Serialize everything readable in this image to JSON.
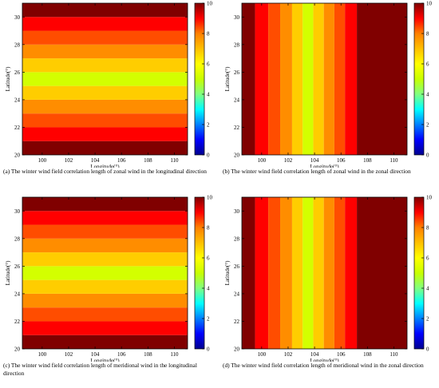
{
  "colormap": [
    "#00008f",
    "#0000ff",
    "#0080ff",
    "#00ffff",
    "#80ff80",
    "#c8ff00",
    "#ffff00",
    "#ffc000",
    "#ff8000",
    "#ff0000",
    "#800000"
  ],
  "chart_data": [
    {
      "type": "heatmap",
      "orientation": "horizontal",
      "xlabel": "Longitude(°)",
      "ylabel": "Latitude(°)",
      "xlim": [
        98.5,
        111
      ],
      "ylim": [
        20,
        31
      ],
      "xticks": [
        100,
        102,
        104,
        106,
        108,
        110
      ],
      "yticks": [
        20,
        22,
        24,
        26,
        28,
        30
      ],
      "colorbar": {
        "range": [
          0,
          10
        ],
        "ticks": [
          0,
          2,
          4,
          6,
          8,
          10
        ]
      },
      "bands": [
        {
          "from": 20,
          "to": 21,
          "value": 10
        },
        {
          "from": 21,
          "to": 22,
          "value": 9
        },
        {
          "from": 22,
          "to": 23,
          "value": 8.4
        },
        {
          "from": 23,
          "to": 24,
          "value": 7.8
        },
        {
          "from": 24,
          "to": 25,
          "value": 6.8
        },
        {
          "from": 25,
          "to": 26,
          "value": 5.2
        },
        {
          "from": 26,
          "to": 27,
          "value": 6.8
        },
        {
          "from": 27,
          "to": 28,
          "value": 7.8
        },
        {
          "from": 28,
          "to": 29,
          "value": 8.4
        },
        {
          "from": 29,
          "to": 30,
          "value": 9
        },
        {
          "from": 30,
          "to": 31,
          "value": 10
        }
      ],
      "caption": "(a) The winter wind field correlation length of zonal wind in the longitudinal direction"
    },
    {
      "type": "heatmap",
      "orientation": "vertical",
      "xlabel": "Longitude(°)",
      "ylabel": "Latitude(°)",
      "xlim": [
        98.5,
        111
      ],
      "ylim": [
        20,
        31
      ],
      "xticks": [
        100,
        102,
        104,
        106,
        108,
        110
      ],
      "yticks": [
        20,
        22,
        24,
        26,
        28,
        30
      ],
      "colorbar": {
        "range": [
          0,
          10
        ],
        "ticks": [
          0,
          2,
          4,
          6,
          8,
          10
        ]
      },
      "bands": [
        {
          "from": 98.5,
          "to": 99.5,
          "value": 10
        },
        {
          "from": 99.5,
          "to": 100.5,
          "value": 9
        },
        {
          "from": 100.5,
          "to": 101.4,
          "value": 8.4
        },
        {
          "from": 101.4,
          "to": 102.3,
          "value": 7.8
        },
        {
          "from": 102.3,
          "to": 103.1,
          "value": 6.8
        },
        {
          "from": 103.1,
          "to": 103.9,
          "value": 5.2
        },
        {
          "from": 103.9,
          "to": 104.7,
          "value": 6.8
        },
        {
          "from": 104.7,
          "to": 105.5,
          "value": 7.8
        },
        {
          "from": 105.5,
          "to": 106.3,
          "value": 8.4
        },
        {
          "from": 106.3,
          "to": 107.2,
          "value": 9
        },
        {
          "from": 107.2,
          "to": 111,
          "value": 10
        }
      ],
      "caption": "(b) The winter wind field correlation length of zonal wind  in the zonal direction"
    },
    {
      "type": "heatmap",
      "orientation": "horizontal",
      "xlabel": "Longitude(°)",
      "ylabel": "Latitude(°)",
      "xlim": [
        98.5,
        111
      ],
      "ylim": [
        20,
        31
      ],
      "xticks": [
        100,
        102,
        104,
        106,
        108,
        110
      ],
      "yticks": [
        20,
        22,
        24,
        26,
        28,
        30
      ],
      "colorbar": {
        "range": [
          0,
          10
        ],
        "ticks": [
          0,
          2,
          4,
          6,
          8,
          10
        ]
      },
      "bands": [
        {
          "from": 20,
          "to": 21,
          "value": 10
        },
        {
          "from": 21,
          "to": 22,
          "value": 9
        },
        {
          "from": 22,
          "to": 23,
          "value": 8.4
        },
        {
          "from": 23,
          "to": 24,
          "value": 7.8
        },
        {
          "from": 24,
          "to": 25,
          "value": 6.8
        },
        {
          "from": 25,
          "to": 26,
          "value": 5.2
        },
        {
          "from": 26,
          "to": 27,
          "value": 6.8
        },
        {
          "from": 27,
          "to": 28,
          "value": 7.8
        },
        {
          "from": 28,
          "to": 29,
          "value": 8.4
        },
        {
          "from": 29,
          "to": 30,
          "value": 9
        },
        {
          "from": 30,
          "to": 31,
          "value": 10
        }
      ],
      "caption": "(c) The winter wind field correlation length of meridional wind in the longitudinal direction"
    },
    {
      "type": "heatmap",
      "orientation": "vertical",
      "xlabel": "Longitude(°)",
      "ylabel": "Latitude(°)",
      "xlim": [
        98.5,
        111
      ],
      "ylim": [
        20,
        31
      ],
      "xticks": [
        100,
        102,
        104,
        106,
        108,
        110
      ],
      "yticks": [
        20,
        22,
        24,
        26,
        28,
        30
      ],
      "colorbar": {
        "range": [
          0,
          10
        ],
        "ticks": [
          0,
          2,
          4,
          6,
          8,
          10
        ]
      },
      "bands": [
        {
          "from": 98.5,
          "to": 99.5,
          "value": 10
        },
        {
          "from": 99.5,
          "to": 100.5,
          "value": 9
        },
        {
          "from": 100.5,
          "to": 101.4,
          "value": 8.4
        },
        {
          "from": 101.4,
          "to": 102.3,
          "value": 7.8
        },
        {
          "from": 102.3,
          "to": 103.1,
          "value": 6.8
        },
        {
          "from": 103.1,
          "to": 103.9,
          "value": 5.2
        },
        {
          "from": 103.9,
          "to": 104.7,
          "value": 6.8
        },
        {
          "from": 104.7,
          "to": 105.5,
          "value": 7.8
        },
        {
          "from": 105.5,
          "to": 106.3,
          "value": 8.4
        },
        {
          "from": 106.3,
          "to": 107.2,
          "value": 9
        },
        {
          "from": 107.2,
          "to": 111,
          "value": 10
        }
      ],
      "caption": "(d) The winter wind field correlation length of meridional wind in the zonal direction"
    }
  ]
}
